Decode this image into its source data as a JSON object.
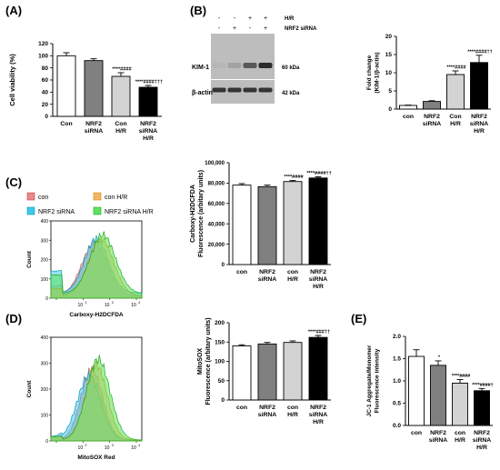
{
  "panels": {
    "A": "(A)",
    "B": "(B)",
    "C": "(C)",
    "D": "(D)",
    "E": "(E)"
  },
  "colors": {
    "con": "#ffffff",
    "nrf2_sirna": "#808080",
    "con_hr": "#d3d3d3",
    "nrf2_sirna_hr": "#000000",
    "flow_con": "#e8898a",
    "flow_con_hr": "#f3b66a",
    "flow_nrf2_sirna": "#3ec8ec",
    "flow_nrf2_sirna_hr": "#5be35b"
  },
  "chart_data": [
    {
      "type": "bar",
      "panel": "A",
      "categories": [
        "Con",
        "NRF2 siRNA",
        "Con H/R",
        "NRF2 siRNA H/R"
      ],
      "values": [
        100,
        92,
        66,
        48
      ],
      "errors": [
        5,
        3,
        6,
        3
      ],
      "annotations": [
        "",
        "",
        "****####",
        "****####†††"
      ],
      "ylabel": "Cell viability (%)",
      "ylim": [
        0,
        120
      ],
      "yticks": [
        "0",
        "20",
        "40",
        "60",
        "80",
        "100",
        "120"
      ]
    },
    {
      "type": "bar",
      "panel": "B",
      "categories": [
        "con",
        "NRF2 siRNA",
        "Con H/R",
        "NRF2 siRNA H/R"
      ],
      "values": [
        1.0,
        2.1,
        9.5,
        12.8
      ],
      "errors": [
        0.1,
        0.2,
        1.0,
        2.0
      ],
      "annotations": [
        "",
        "",
        "****####",
        "****####††"
      ],
      "ylabel": "Fold change (KIM-1/β-actin)",
      "ylim": [
        0,
        20
      ],
      "yticks": [
        "0",
        "5",
        "10",
        "15",
        "20"
      ]
    },
    {
      "type": "bar",
      "panel": "C",
      "categories": [
        "con",
        "NRF2 siRNA",
        "con H/R",
        "NRF2 siRNA H/R"
      ],
      "values": [
        78000,
        76500,
        81500,
        85000
      ],
      "errors": [
        1500,
        1500,
        1000,
        1200
      ],
      "annotations": [
        "",
        "",
        "****####",
        "****####††"
      ],
      "ylabel": "Carboxy-H2DCFDA Fluorescence (arbitary units)",
      "ylim": [
        0,
        100000
      ],
      "yticks": [
        "0",
        "20,000",
        "40,000",
        "60,000",
        "80,000",
        "100,000"
      ]
    },
    {
      "type": "bar",
      "panel": "D",
      "categories": [
        "con",
        "NRF2 siRNA",
        "con H/R",
        "NRF2 siRNA H/R"
      ],
      "values": [
        140,
        145,
        149,
        162
      ],
      "errors": [
        3,
        4,
        4,
        5
      ],
      "annotations": [
        "",
        "",
        "",
        "****###††"
      ],
      "ylabel": "MitoSOX Fluorescence (arbitary units)",
      "ylim": [
        0,
        200
      ],
      "yticks": [
        "0",
        "50",
        "100",
        "150",
        "200"
      ]
    },
    {
      "type": "bar",
      "panel": "E",
      "categories": [
        "con",
        "NRF2 siRNA",
        "con H/R",
        "NRF2 siRNA H/R"
      ],
      "values": [
        1.55,
        1.35,
        0.95,
        0.78
      ],
      "errors": [
        0.15,
        0.1,
        0.08,
        0.05
      ],
      "annotations": [
        "",
        "*",
        "****####",
        "****####†"
      ],
      "ylabel": "JC-1 Aggregate/Monomer Fluorescence intensity",
      "ylim": [
        0,
        2.0
      ],
      "yticks": [
        "0.0",
        "0.5",
        "1.0",
        "1.5",
        "2.0"
      ]
    }
  ],
  "western_blot": {
    "treatment_rows": [
      {
        "label": "H/R",
        "marks": [
          "-",
          "-",
          "+",
          "+"
        ]
      },
      {
        "label": "NRF2 siRNA",
        "marks": [
          "-",
          "+",
          "-",
          "+"
        ]
      }
    ],
    "bands": [
      {
        "protein": "KIM-1",
        "size": "60 kDa",
        "intensity": [
          0.1,
          0.2,
          0.6,
          0.85
        ]
      },
      {
        "protein": "β-actin",
        "size": "42 kDa",
        "intensity": [
          0.8,
          0.8,
          0.8,
          0.8
        ]
      }
    ]
  },
  "flow_C": {
    "legend": [
      "con",
      "NRF2 siRNA",
      "con H/R",
      "NRF2 siRNA H/R"
    ],
    "ylabel": "Count",
    "xlabel": "Carboxy-H2DCFDA",
    "yticks": [
      "0",
      "100",
      "200",
      "300",
      "400"
    ],
    "xticks": [
      "10",
      "10",
      "10",
      "10"
    ],
    "xexp": [
      "2",
      "3",
      "4"
    ]
  },
  "flow_D": {
    "ylabel": "Count",
    "xlabel": "MitoSOX Red",
    "yticks": [
      "0",
      "100",
      "200",
      "300",
      "400"
    ],
    "xticks": [
      "10",
      "10",
      "10",
      "10"
    ],
    "xexp": [
      "2",
      "3",
      "4"
    ]
  }
}
